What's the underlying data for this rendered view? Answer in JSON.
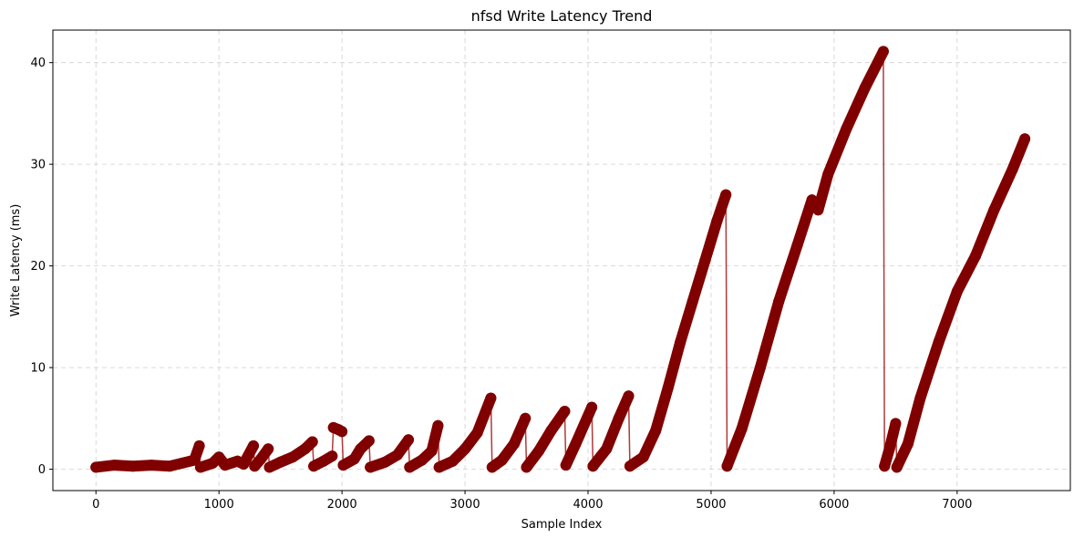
{
  "chart_data": {
    "type": "line",
    "title": "nfsd Write Latency Trend",
    "xlabel": "Sample Index",
    "ylabel": "Write Latency (ms)",
    "xlim": [
      -350,
      7920
    ],
    "ylim": [
      -2.1,
      43.2
    ],
    "xticks": [
      0,
      1000,
      2000,
      3000,
      4000,
      5000,
      6000,
      7000
    ],
    "xtick_labels": [
      "0",
      "1000",
      "2000",
      "3000",
      "4000",
      "5000",
      "6000",
      "7000"
    ],
    "yticks": [
      0,
      10,
      20,
      30,
      40
    ],
    "ytick_labels": [
      "0",
      "10",
      "20",
      "30",
      "40"
    ],
    "grid": true,
    "legend": "none",
    "colors": {
      "line": "#b03a3a",
      "marker": "#800000"
    },
    "series": [
      {
        "line_style": "solid",
        "marker": "circle",
        "segments": [
          [
            [
              0,
              0.2
            ],
            [
              150,
              0.4
            ],
            [
              300,
              0.3
            ],
            [
              450,
              0.4
            ],
            [
              600,
              0.3
            ],
            [
              700,
              0.6
            ],
            [
              800,
              0.9
            ],
            [
              840,
              2.3
            ]
          ],
          [
            [
              850,
              0.2
            ],
            [
              950,
              0.6
            ],
            [
              1000,
              1.2
            ],
            [
              1050,
              0.4
            ],
            [
              1150,
              0.8
            ],
            [
              1200,
              0.5
            ],
            [
              1280,
              2.3
            ]
          ],
          [
            [
              1290,
              0.3
            ],
            [
              1340,
              1.0
            ],
            [
              1400,
              2.0
            ]
          ],
          [
            [
              1410,
              0.2
            ],
            [
              1500,
              0.7
            ],
            [
              1600,
              1.2
            ],
            [
              1700,
              2.0
            ],
            [
              1760,
              2.7
            ]
          ],
          [
            [
              1770,
              0.3
            ],
            [
              1850,
              0.8
            ],
            [
              1920,
              1.3
            ]
          ],
          [
            [
              1930,
              4.1
            ],
            [
              1970,
              3.9
            ],
            [
              2000,
              3.7
            ]
          ],
          [
            [
              2010,
              0.4
            ],
            [
              2100,
              1.0
            ],
            [
              2150,
              2.0
            ],
            [
              2220,
              2.8
            ]
          ],
          [
            [
              2230,
              0.2
            ],
            [
              2350,
              0.7
            ],
            [
              2450,
              1.4
            ],
            [
              2540,
              2.9
            ]
          ],
          [
            [
              2550,
              0.2
            ],
            [
              2650,
              0.9
            ],
            [
              2730,
              1.8
            ],
            [
              2780,
              4.3
            ]
          ],
          [
            [
              2790,
              0.2
            ],
            [
              2900,
              0.8
            ],
            [
              3000,
              2.0
            ],
            [
              3100,
              3.6
            ],
            [
              3210,
              7.0
            ]
          ],
          [
            [
              3220,
              0.2
            ],
            [
              3300,
              0.9
            ],
            [
              3400,
              2.5
            ],
            [
              3490,
              5.0
            ]
          ],
          [
            [
              3500,
              0.2
            ],
            [
              3600,
              1.8
            ],
            [
              3700,
              3.8
            ],
            [
              3810,
              5.7
            ]
          ],
          [
            [
              3820,
              0.4
            ],
            [
              3900,
              2.5
            ],
            [
              4030,
              6.1
            ]
          ],
          [
            [
              4040,
              0.3
            ],
            [
              4150,
              2.0
            ],
            [
              4250,
              5.0
            ],
            [
              4330,
              7.2
            ]
          ],
          [
            [
              4340,
              0.3
            ],
            [
              4450,
              1.2
            ],
            [
              4550,
              3.8
            ],
            [
              4650,
              8.0
            ],
            [
              4750,
              12.5
            ],
            [
              4850,
              16.5
            ],
            [
              4950,
              20.5
            ],
            [
              5050,
              24.5
            ],
            [
              5120,
              27.0
            ]
          ],
          [
            [
              5130,
              0.3
            ],
            [
              5250,
              4.0
            ],
            [
              5400,
              10.0
            ],
            [
              5550,
              16.5
            ],
            [
              5700,
              22.0
            ],
            [
              5820,
              26.5
            ],
            [
              5870,
              25.5
            ],
            [
              5950,
              29.0
            ],
            [
              6100,
              33.5
            ],
            [
              6250,
              37.5
            ],
            [
              6400,
              41.1
            ]
          ],
          [
            [
              6410,
              0.3
            ],
            [
              6450,
              2.0
            ],
            [
              6500,
              4.5
            ]
          ],
          [
            [
              6510,
              0.2
            ],
            [
              6600,
              2.5
            ],
            [
              6700,
              7.0
            ],
            [
              6850,
              12.5
            ],
            [
              7000,
              17.5
            ],
            [
              7150,
              21.0
            ],
            [
              7300,
              25.5
            ],
            [
              7450,
              29.5
            ],
            [
              7550,
              32.5
            ]
          ]
        ]
      }
    ]
  }
}
